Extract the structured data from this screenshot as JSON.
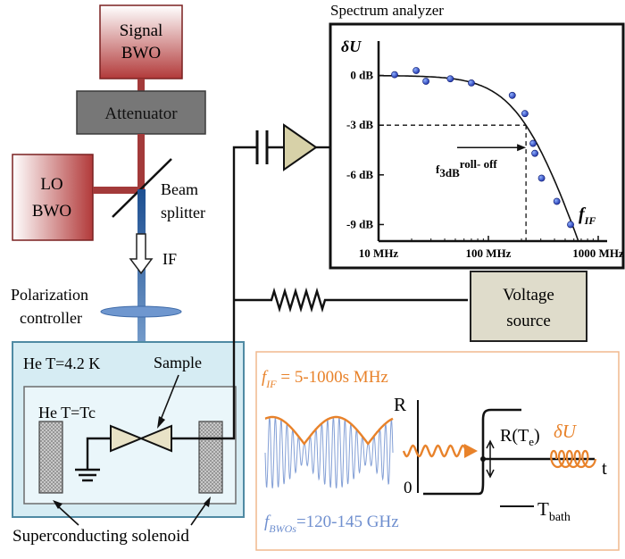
{
  "diagram": {
    "signal_bwo": [
      "Signal",
      "BWO"
    ],
    "attenuator": "Attenuator",
    "lo_bwo": [
      "LO",
      "BWO"
    ],
    "beam_splitter": [
      "Beam",
      "splitter"
    ],
    "if_label": "IF",
    "polarization_controller": [
      "Polarization",
      "controller"
    ],
    "he_outer": "He T=4.2 K",
    "he_inner": "He T=Tc",
    "sample": "Sample",
    "solenoid": "Superconducting solenoid",
    "voltage_source": [
      "Voltage",
      "source"
    ],
    "spectrum_title": "Spectrum analyzer"
  },
  "inset": {
    "f_if_symbol": "f",
    "f_if_sub": "IF",
    "f_if_value": " = 5-1000s MHz",
    "f_bwo_symbol": "f",
    "f_bwo_sub": "BWOs",
    "f_bwo_value": "=120-145 GHz",
    "r_axis": "R",
    "zero": "0",
    "r_te": "R(T",
    "r_te_sub": "e",
    "r_te_close": ")",
    "du_symbol": "δU",
    "t_axis": "t",
    "tbath_main": "T",
    "tbath_sub": "bath",
    "colors": {
      "orange": "#e8822a",
      "blue": "#6f8fcf",
      "frame": "#f0b98e"
    }
  },
  "chart_data": {
    "type": "scatter",
    "title": "Spectrum analyzer",
    "ylabel_symbol": "δU",
    "xlabel_symbol": "f",
    "xlabel_sub": "IF",
    "x_scale": "log",
    "xlim": [
      10,
      1000
    ],
    "ylim": [
      -10,
      1
    ],
    "x_ticks": [
      {
        "value": 10,
        "label": "10 MHz"
      },
      {
        "value": 100,
        "label": "100 MHz"
      },
      {
        "value": 1000,
        "label": "1000 MHz"
      }
    ],
    "y_ticks": [
      {
        "value": 0,
        "label": "0 dB"
      },
      {
        "value": -3,
        "label": "-3 dB"
      },
      {
        "value": -6,
        "label": "-6 dB"
      },
      {
        "value": -9,
        "label": "-9 dB"
      }
    ],
    "points": [
      {
        "x": 14,
        "y": 0.05
      },
      {
        "x": 22,
        "y": 0.3
      },
      {
        "x": 27,
        "y": -0.35
      },
      {
        "x": 45,
        "y": -0.2
      },
      {
        "x": 70,
        "y": -0.45
      },
      {
        "x": 165,
        "y": -1.2
      },
      {
        "x": 215,
        "y": -2.3
      },
      {
        "x": 255,
        "y": -4.1
      },
      {
        "x": 265,
        "y": -4.7
      },
      {
        "x": 305,
        "y": -6.2
      },
      {
        "x": 420,
        "y": -7.6
      },
      {
        "x": 560,
        "y": -9.0
      }
    ],
    "fit_cutoff_mhz": 220,
    "rolloff_x": 220,
    "annotation_main": "f",
    "annotation_sub": "3dB",
    "annotation_tail": "roll- off"
  }
}
